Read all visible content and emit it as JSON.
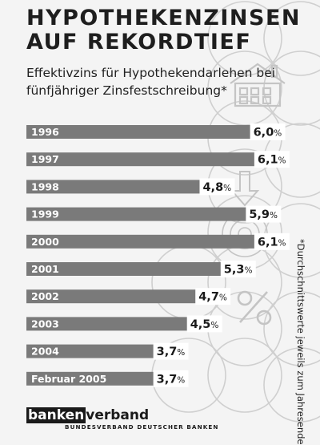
{
  "header": {
    "title_line1": "HYPOTHEKENZINSEN",
    "title_line2": "AUF REKORDTIEF",
    "subtitle_line1": "Effektivzins für Hypothekendarlehen bei",
    "subtitle_line2": "fünfjähriger Zinsfestschreibung*"
  },
  "footnote": "*Durchschnittswerte jeweils zum Jahresende",
  "logo": {
    "part1": "banken",
    "part2": "verband",
    "sub": "BUNDESVERBAND DEUTSCHER BANKEN"
  },
  "colors": {
    "bar": "#7a7a7a",
    "bar_text": "#ffffff",
    "label_box": "#ffffff",
    "label_text": "#1a1a1a",
    "background": "#f4f4f4",
    "decoration": "#c8c8c8"
  },
  "chart_data": {
    "type": "bar",
    "orientation": "horizontal",
    "categories": [
      "1996",
      "1997",
      "1998",
      "1999",
      "2000",
      "2001",
      "2002",
      "2003",
      "2004",
      "Februar 2005"
    ],
    "values": [
      6.0,
      6.1,
      4.8,
      5.9,
      6.1,
      5.3,
      4.7,
      4.5,
      3.7,
      3.7
    ],
    "data_labels": [
      "6,0",
      "6,1",
      "4,8",
      "5,9",
      "6,1",
      "5,3",
      "4,7",
      "4,5",
      "3,7",
      "3,7"
    ],
    "unit": "%",
    "title": "HYPOTHEKENZINSEN AUF REKORDTIEF",
    "subtitle": "Effektivzins für Hypothekendarlehen bei fünfjähriger Zinsfestschreibung*",
    "xlabel": "",
    "ylabel": "",
    "grid": false,
    "decorations": [
      "house-icon",
      "percent-icon",
      "bullseye-icon"
    ]
  }
}
